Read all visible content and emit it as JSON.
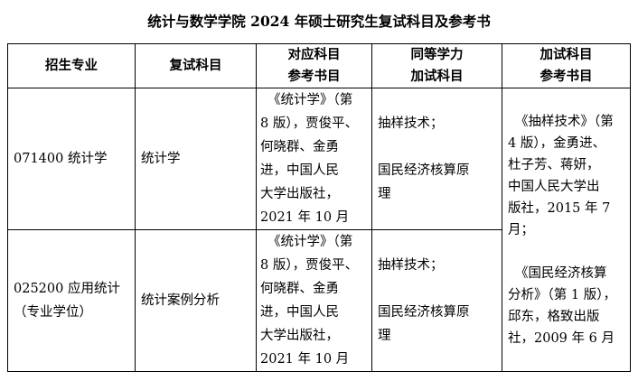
{
  "title": "统计与数学学院 2024 年硕士研究生复试科目及参考书",
  "headers": [
    [
      "招生专业"
    ],
    [
      "复试科目"
    ],
    [
      "对应科目",
      "参考书目"
    ],
    [
      "同等学力",
      "加试科目"
    ],
    [
      "加试科目",
      "参考书目"
    ]
  ],
  "rows": [
    {
      "major": [
        "071400 统计学"
      ],
      "subject": "统计学",
      "books": [
        "《统计学》（第",
        "8 版），贾俊平、",
        "何晓群、金勇",
        "进，中国人民",
        "大学出版社，",
        "2021 年 10 月"
      ],
      "extra": [
        "抽样技术；",
        "",
        "国民经济核算原",
        "理"
      ]
    },
    {
      "major": [
        "025200 应用统计",
        "（专业学位）"
      ],
      "subject": "统计案例分析",
      "books": [
        "《统计学》（第",
        "8 版），贾俊平、",
        "何晓群、金勇",
        "进，中国人民",
        "大学出版社，",
        "2021 年 10 月"
      ],
      "extra": [
        "抽样技术；",
        "",
        "国民经济核算原",
        "理"
      ]
    }
  ],
  "extra_books": [
    "《抽样技术》（第",
    "4 版），金勇进、",
    "杜子芳、蒋妍，",
    "中国人民大学出",
    "版社，2015 年 7",
    "月；",
    "",
    "《国民经济核算",
    "分析》（第 1 版），",
    "邱东，格致出版",
    "社，2009 年 6 月"
  ]
}
